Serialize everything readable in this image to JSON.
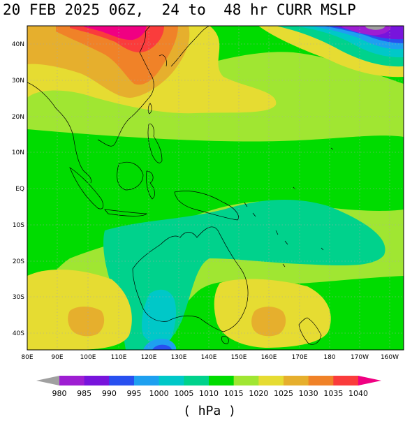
{
  "title": "20 FEB 2025 06Z,  24 to  48 hr CURR MSLP",
  "units_label": "( hPa )",
  "lat_ticks": [
    "40N",
    "30N",
    "20N",
    "10N",
    "EQ",
    "10S",
    "20S",
    "30S",
    "40S"
  ],
  "lon_ticks": [
    "80E",
    "90E",
    "100E",
    "110E",
    "120E",
    "130E",
    "140E",
    "150E",
    "160E",
    "170E",
    "180",
    "170W",
    "160W"
  ],
  "colorbar": {
    "labels": [
      "980",
      "985",
      "990",
      "995",
      "1000",
      "1005",
      "1010",
      "1015",
      "1020",
      "1025",
      "1030",
      "1035",
      "1040"
    ],
    "colors": [
      "#a0a0a0",
      "#9e1ed2",
      "#7814dc",
      "#2850f0",
      "#1ea0f0",
      "#00c8c8",
      "#00d28c",
      "#00dc00",
      "#a0e632",
      "#e6dc32",
      "#e6af2d",
      "#f08228",
      "#fa3c3c",
      "#f00082"
    ]
  },
  "palette": {
    "ocean_base": "#a0e632",
    "yellow": "#e6dc32",
    "orange": "#e6af2d",
    "darkorange": "#f08228",
    "red": "#fa3c3c",
    "magenta": "#f00082",
    "green": "#00dc00",
    "teal": "#00d28c",
    "cyan": "#00c8c8",
    "sky": "#1ea0f0",
    "blue": "#2850f0",
    "purple": "#7814dc",
    "violet": "#9e1ed2"
  }
}
